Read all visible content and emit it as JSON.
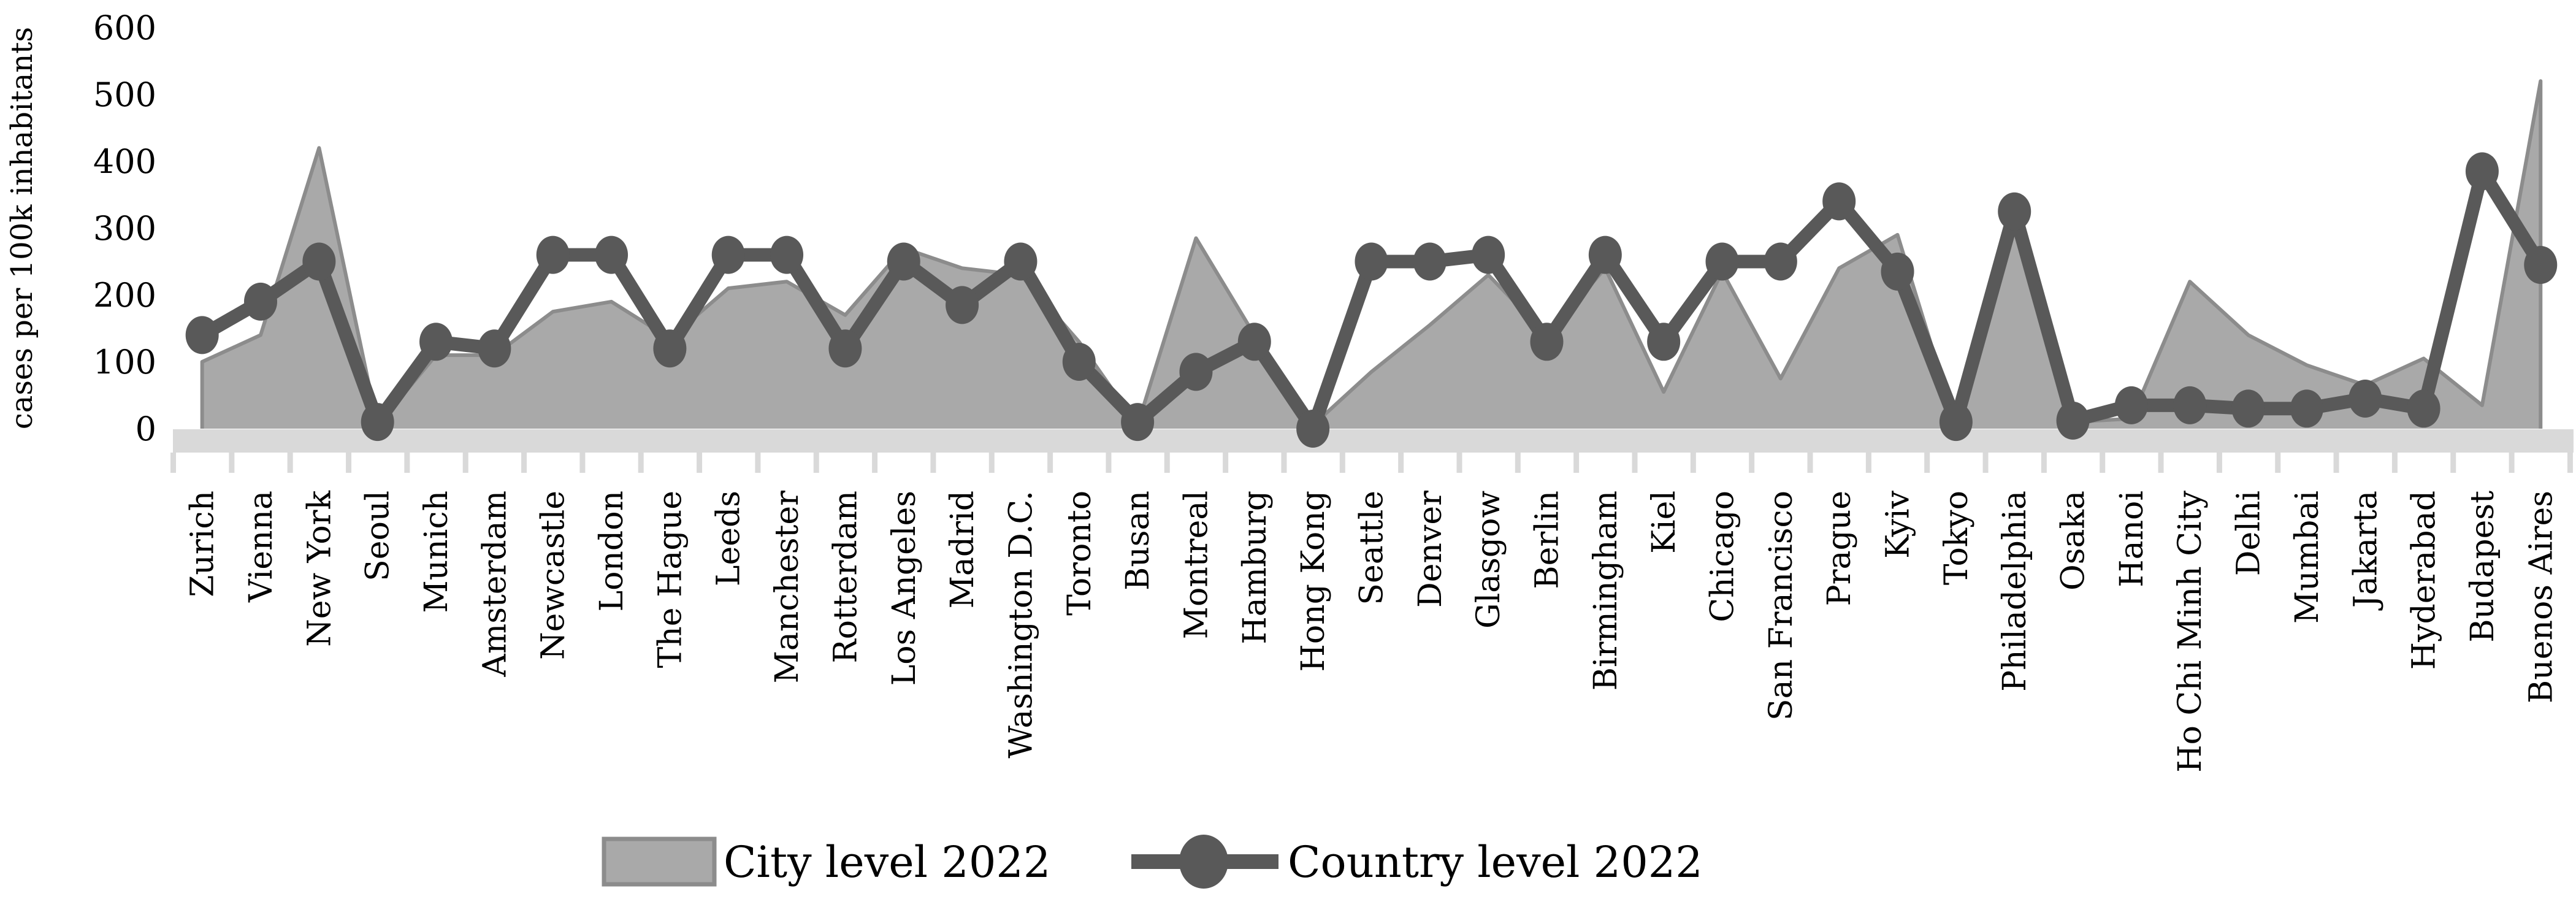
{
  "chart_data": {
    "type": "area",
    "title": "",
    "ylabel": "cases per 100k inhabitants",
    "xlabel": "",
    "ylim": [
      0,
      600
    ],
    "y_ticks": [
      0,
      100,
      200,
      300,
      400,
      500,
      600
    ],
    "grid": false,
    "legend_position": "bottom",
    "categories": [
      "Zurich",
      "Vienna",
      "New York",
      "Seoul",
      "Munich",
      "Amsterdam",
      "Newcastle",
      "London",
      "The Hague",
      "Leeds",
      "Manchester",
      "Rotterdam",
      "Los Angeles",
      "Madrid",
      "Washington D.C.",
      "Toronto",
      "Busan",
      "Montreal",
      "Hamburg",
      "Hong Kong",
      "Seattle",
      "Denver",
      "Glasgow",
      "Berlin",
      "Birmingham",
      "Kiel",
      "Chicago",
      "San Francisco",
      "Prague",
      "Kyiv",
      "Tokyo",
      "Philadelphia",
      "Osaka",
      "Hanoi",
      "Ho Chi Minh City",
      "Delhi",
      "Mumbai",
      "Jakarta",
      "Hyderabad",
      "Budapest",
      "Buenos Aires"
    ],
    "series": [
      {
        "name": "City level 2022",
        "type": "area",
        "fill_color": "#A9A9A9",
        "border_color": "#8C8C8C",
        "values": [
          100,
          140,
          420,
          5,
          110,
          110,
          175,
          190,
          135,
          210,
          220,
          170,
          270,
          240,
          230,
          130,
          5,
          285,
          140,
          5,
          85,
          155,
          230,
          140,
          240,
          55,
          235,
          75,
          240,
          290,
          5,
          300,
          10,
          15,
          220,
          140,
          95,
          65,
          105,
          35,
          520
        ]
      },
      {
        "name": "Country level 2022",
        "type": "line",
        "color": "#595959",
        "marker": "circle",
        "values": [
          140,
          190,
          250,
          10,
          130,
          120,
          260,
          260,
          120,
          260,
          260,
          120,
          250,
          185,
          250,
          100,
          10,
          85,
          130,
          0,
          250,
          250,
          260,
          130,
          260,
          130,
          250,
          250,
          340,
          235,
          10,
          325,
          12,
          35,
          35,
          30,
          30,
          45,
          30,
          385,
          245
        ]
      }
    ]
  },
  "colors": {
    "area_fill": "#A9A9A9",
    "area_border": "#8C8C8C",
    "line": "#595959",
    "axis_strip": "#D9D9D9",
    "text": "#000000"
  },
  "axis": {
    "strip": "x-axis-baseline-strip",
    "tick_count": 42
  }
}
